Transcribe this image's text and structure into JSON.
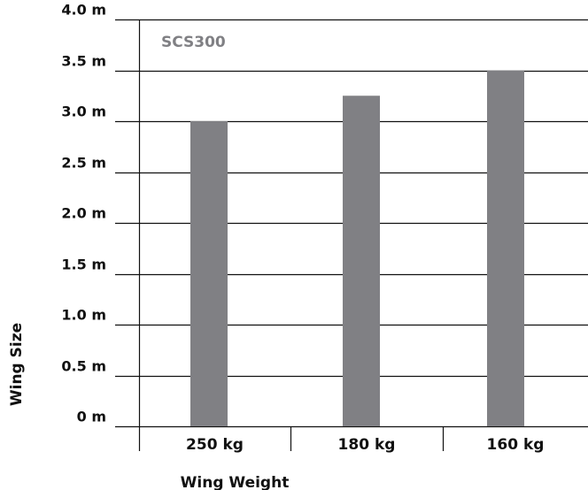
{
  "chart_data": {
    "type": "bar",
    "title": "SCS300",
    "xlabel": "Wing Weight",
    "ylabel": "Wing Size",
    "categories": [
      "250 kg",
      "180 kg",
      "160 kg"
    ],
    "values": [
      3.0,
      3.25,
      3.5
    ],
    "ylim": [
      0,
      4.0
    ],
    "yticks": [
      {
        "value": 0,
        "label": "0 m"
      },
      {
        "value": 0.5,
        "label": "0.5 m"
      },
      {
        "value": 1.0,
        "label": "1.0 m"
      },
      {
        "value": 1.5,
        "label": "1.5 m"
      },
      {
        "value": 2.0,
        "label": "2.0 m"
      },
      {
        "value": 2.5,
        "label": "2.5 m"
      },
      {
        "value": 3.0,
        "label": "3.0 m"
      },
      {
        "value": 3.5,
        "label": "3.5 m"
      },
      {
        "value": 4.0,
        "label": "4.0 m"
      }
    ],
    "grid": true,
    "colors": {
      "bar": "#808084",
      "title": "#808084",
      "axis": "#111111"
    }
  }
}
